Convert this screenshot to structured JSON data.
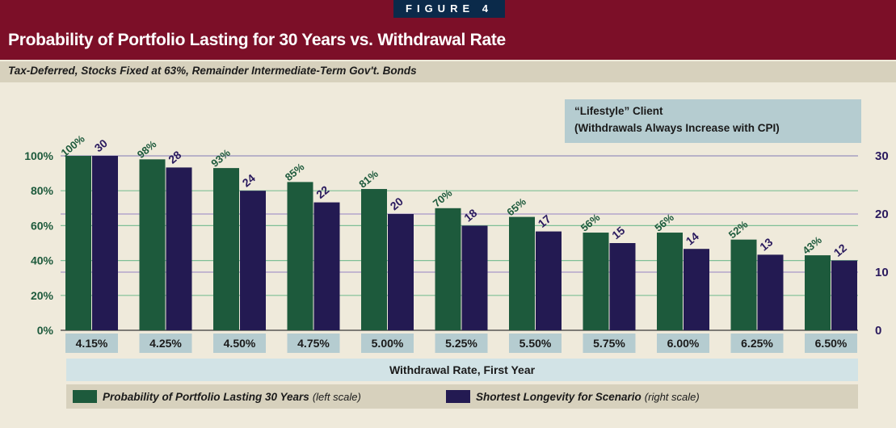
{
  "header": {
    "figure_tag": "FIGURE 4",
    "title": "Probability of Portfolio Lasting for 30 Years vs. Withdrawal Rate",
    "subtitle": "Tax-Deferred, Stocks Fixed at 63%, Remainder Intermediate-Term Gov't. Bonds"
  },
  "colors": {
    "header_bg": "#7c0f28",
    "probability_bar": "#1d5a3c",
    "longevity_bar": "#231a52",
    "gridline_probability": "#7fbf96",
    "gridline_longevity": "#a898c8"
  },
  "chart_data": {
    "type": "bar",
    "title": "Probability of Portfolio Lasting for 30 Years vs. Withdrawal Rate",
    "subtitle": "Tax-Deferred, Stocks Fixed at 63%, Remainder Intermediate-Term Gov't. Bonds",
    "xlabel": "Withdrawal Rate, First Year",
    "categories": [
      "4.15%",
      "4.25%",
      "4.50%",
      "4.75%",
      "5.00%",
      "5.25%",
      "5.50%",
      "5.75%",
      "6.00%",
      "6.25%",
      "6.50%"
    ],
    "series": [
      {
        "name": "Probability of Portfolio Lasting 30 Years",
        "axis_note": "(left scale)",
        "axis": "left",
        "values": [
          100,
          98,
          93,
          85,
          81,
          70,
          65,
          56,
          56,
          52,
          43
        ],
        "labels": [
          "100%",
          "98%",
          "93%",
          "85%",
          "81%",
          "70%",
          "65%",
          "56%",
          "56%",
          "52%",
          "43%"
        ]
      },
      {
        "name": "Shortest Longevity for Scenario",
        "axis_note": "(right scale)",
        "axis": "right",
        "values": [
          30,
          28,
          24,
          22,
          20,
          18,
          17,
          15,
          14,
          13,
          12
        ],
        "labels": [
          "30",
          "28",
          "24",
          "22",
          "20",
          "18",
          "17",
          "15",
          "14",
          "13",
          "12"
        ]
      }
    ],
    "left_axis": {
      "ylim": [
        0,
        100
      ],
      "ticks": [
        "0%",
        "20%",
        "40%",
        "60%",
        "80%",
        "100%"
      ]
    },
    "right_axis": {
      "ylim": [
        0,
        30
      ],
      "ticks": [
        "0",
        "10",
        "20",
        "30"
      ]
    },
    "annotation": {
      "line1": "“Lifestyle” Client",
      "line2": "(Withdrawals Always Increase with CPI)"
    },
    "grid": true,
    "legend_position": "bottom"
  }
}
